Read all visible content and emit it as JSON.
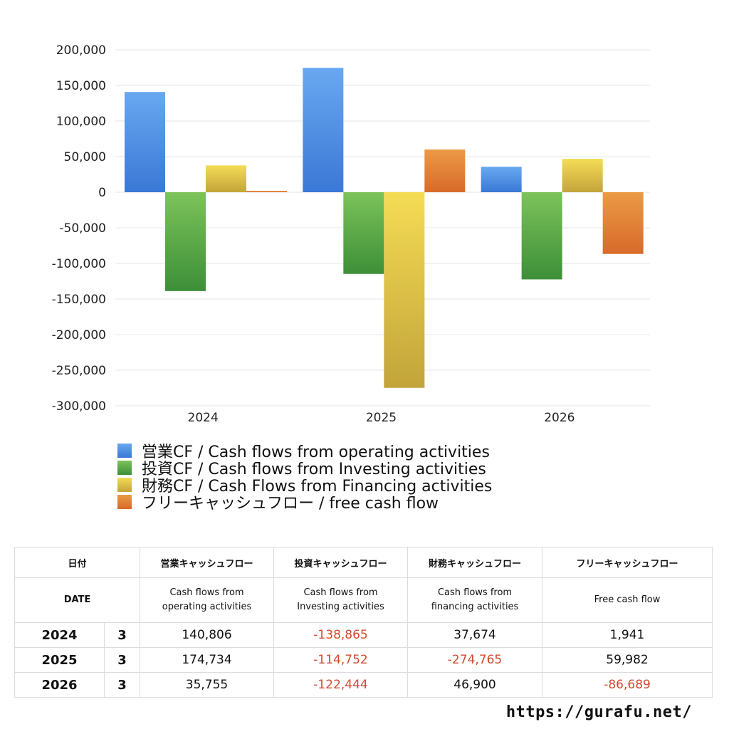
{
  "chart_data": {
    "type": "bar",
    "categories": [
      "2024",
      "2025",
      "2026"
    ],
    "series": [
      {
        "name": "営業CF / Cash flows from operating activities",
        "values": [
          140806,
          174734,
          35755
        ],
        "color": "#3a78d6",
        "color_top": "#69a8f0"
      },
      {
        "name": "投資CF / Cash flows from Investing activities",
        "values": [
          -138865,
          -114752,
          -122444
        ],
        "color": "#3d8f38",
        "color_top": "#7cc35a"
      },
      {
        "name": "財務CF / Cash Flows from Financing activities",
        "values": [
          37674,
          -274765,
          46900
        ],
        "color": "#c2a43a",
        "color_top": "#f5dc55"
      },
      {
        "name": "フリーキャッシュフロー / free cash flow",
        "values": [
          1941,
          59982,
          -86689
        ],
        "color": "#d86a2a",
        "color_top": "#eb9a45"
      }
    ],
    "ylim": [
      -300000,
      200000
    ],
    "yticks": [
      200000,
      150000,
      100000,
      50000,
      0,
      -50000,
      -100000,
      -150000,
      -200000,
      -250000,
      -300000
    ],
    "ytick_labels": [
      "200,000",
      "150,000",
      "100,000",
      "50,000",
      "0",
      "-50,000",
      "-100,000",
      "-150,000",
      "-200,000",
      "-250,000",
      "-300,000"
    ],
    "grid": true,
    "legend_position": "bottom-left"
  },
  "table": {
    "header_row1": {
      "date": "日付",
      "operating": "営業キャッシュフロー",
      "investing": "投資キャッシュフロー",
      "financing": "財務キャッシュフロー",
      "free": "フリーキャッシュフロー"
    },
    "header_row2": {
      "date": "DATE",
      "operating": [
        "Cash flows from",
        "operating activities"
      ],
      "investing": [
        "Cash flows from",
        "Investing activities"
      ],
      "financing": [
        "Cash flows from",
        "financing activities"
      ],
      "free": "Free cash flow"
    },
    "rows": [
      {
        "year": "2024",
        "month": "3",
        "operating": "140,806",
        "investing": "-138,865",
        "financing": "37,674",
        "free": "1,941"
      },
      {
        "year": "2025",
        "month": "3",
        "operating": "174,734",
        "investing": "-114,752",
        "financing": "-274,765",
        "free": "59,982"
      },
      {
        "year": "2026",
        "month": "3",
        "operating": "35,755",
        "investing": "-122,444",
        "financing": "46,900",
        "free": "-86,689"
      }
    ],
    "negative_color": "#d04a2e"
  },
  "site_url": "https://gurafu.net/"
}
